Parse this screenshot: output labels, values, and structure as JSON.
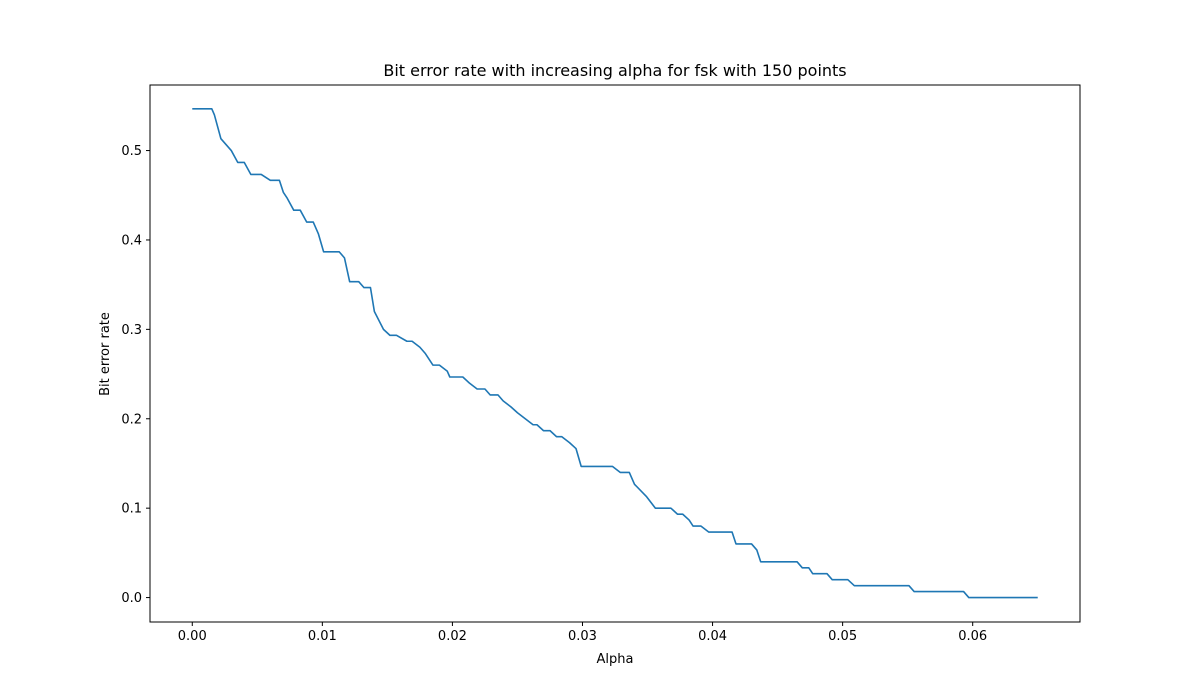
{
  "chart_data": {
    "type": "line",
    "title": "Bit error rate with increasing alpha for fsk with 150 points",
    "xlabel": "Alpha",
    "ylabel": "Bit error rate",
    "xlim": [
      -0.00325,
      0.06825
    ],
    "ylim": [
      -0.02733,
      0.57333
    ],
    "xticks": [
      0.0,
      0.01,
      0.02,
      0.03,
      0.04,
      0.05,
      0.06
    ],
    "xtick_labels": [
      "0.00",
      "0.01",
      "0.02",
      "0.03",
      "0.04",
      "0.05",
      "0.06"
    ],
    "yticks": [
      0.0,
      0.1,
      0.2,
      0.3,
      0.4,
      0.5
    ],
    "ytick_labels": [
      "0.0",
      "0.1",
      "0.2",
      "0.3",
      "0.4",
      "0.5"
    ],
    "grid": false,
    "series": [
      {
        "color": "#1f77b4",
        "x": [
          0.0,
          0.0015,
          0.0017,
          0.0022,
          0.003,
          0.0035,
          0.004,
          0.0045,
          0.0053,
          0.006,
          0.0067,
          0.007,
          0.0073,
          0.0078,
          0.0083,
          0.0088,
          0.0093,
          0.0097,
          0.0101,
          0.0108,
          0.0113,
          0.0117,
          0.0121,
          0.0128,
          0.0132,
          0.0137,
          0.014,
          0.0147,
          0.0152,
          0.0157,
          0.0165,
          0.0169,
          0.0175,
          0.0179,
          0.0185,
          0.019,
          0.0196,
          0.0198,
          0.0208,
          0.0213,
          0.0219,
          0.0225,
          0.0229,
          0.0235,
          0.0239,
          0.0245,
          0.025,
          0.0262,
          0.0265,
          0.027,
          0.0275,
          0.028,
          0.0284,
          0.029,
          0.0295,
          0.0299,
          0.0302,
          0.0323,
          0.0329,
          0.0336,
          0.034,
          0.0349,
          0.0356,
          0.0363,
          0.0368,
          0.0373,
          0.0377,
          0.0382,
          0.0385,
          0.0391,
          0.0397,
          0.0415,
          0.0418,
          0.043,
          0.0434,
          0.0437,
          0.0465,
          0.0469,
          0.0474,
          0.0477,
          0.0484,
          0.0488,
          0.0492,
          0.0504,
          0.0509,
          0.0512,
          0.0551,
          0.0555,
          0.0593,
          0.0597,
          0.065
        ],
        "y": [
          0.5467,
          0.5467,
          0.54,
          0.5133,
          0.5,
          0.4867,
          0.4867,
          0.4733,
          0.4733,
          0.4667,
          0.4667,
          0.4533,
          0.4467,
          0.4333,
          0.4333,
          0.42,
          0.42,
          0.4067,
          0.3867,
          0.3867,
          0.3867,
          0.38,
          0.3533,
          0.3533,
          0.3467,
          0.3467,
          0.32,
          0.3,
          0.2933,
          0.2933,
          0.2867,
          0.2867,
          0.28,
          0.2733,
          0.26,
          0.26,
          0.2533,
          0.2467,
          0.2467,
          0.24,
          0.2333,
          0.2333,
          0.2267,
          0.2267,
          0.22,
          0.2133,
          0.2067,
          0.1933,
          0.1933,
          0.1867,
          0.1867,
          0.18,
          0.18,
          0.1733,
          0.1667,
          0.1467,
          0.1467,
          0.1467,
          0.14,
          0.14,
          0.1267,
          0.1133,
          0.1,
          0.1,
          0.1,
          0.0933,
          0.0933,
          0.0867,
          0.08,
          0.08,
          0.0733,
          0.0733,
          0.06,
          0.06,
          0.0533,
          0.04,
          0.04,
          0.0333,
          0.0333,
          0.0267,
          0.0267,
          0.0267,
          0.02,
          0.02,
          0.0133,
          0.0133,
          0.0133,
          0.0067,
          0.0067,
          0.0,
          0.0
        ]
      }
    ]
  }
}
